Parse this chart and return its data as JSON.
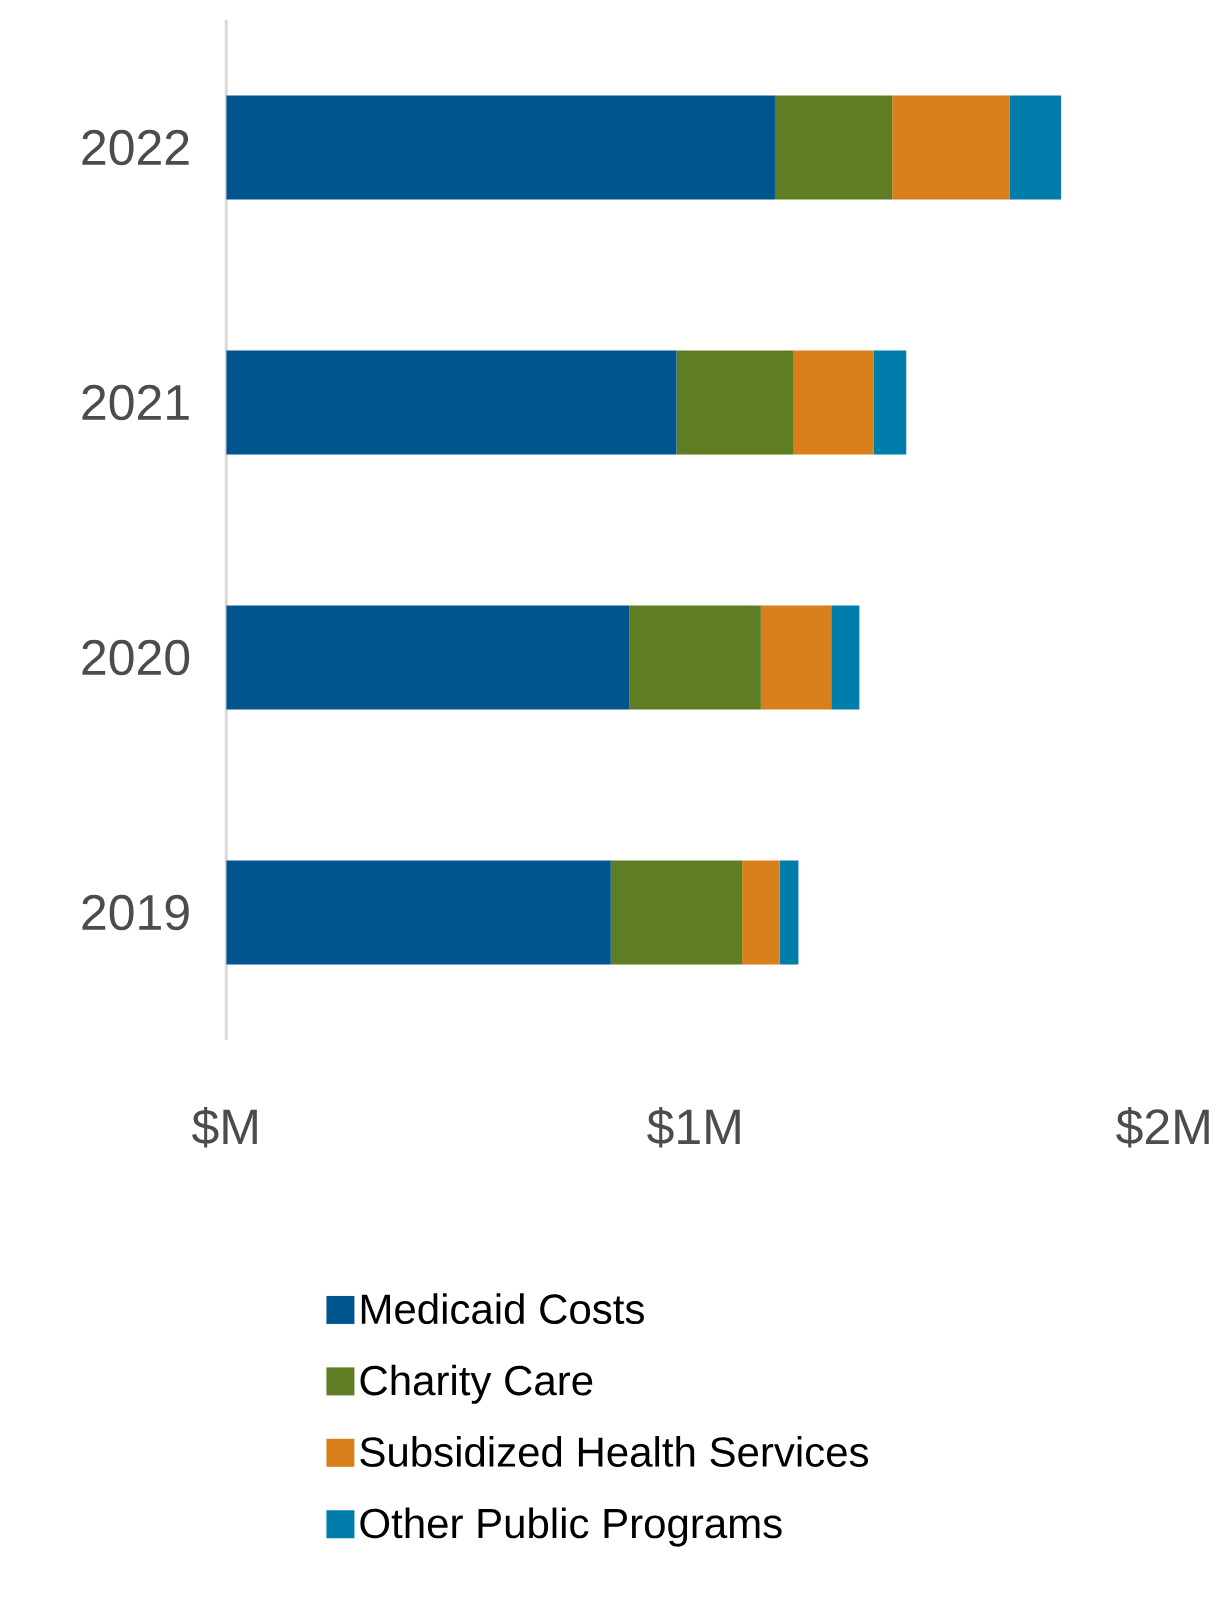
{
  "chart_data": {
    "type": "bar",
    "orientation": "horizontal",
    "stacked": true,
    "categories": [
      "2022",
      "2021",
      "2020",
      "2019"
    ],
    "series": [
      {
        "name": "Medicaid Costs",
        "color": "#00558f",
        "values": [
          1.17,
          0.96,
          0.86,
          0.82
        ]
      },
      {
        "name": "Charity Care",
        "color": "#5f7e24",
        "values": [
          0.25,
          0.25,
          0.28,
          0.28
        ]
      },
      {
        "name": "Subsidized Health Services",
        "color": "#d97f1c",
        "values": [
          0.25,
          0.17,
          0.15,
          0.08
        ]
      },
      {
        "name": "Other Public Programs",
        "color": "#007dab",
        "values": [
          0.11,
          0.07,
          0.06,
          0.04
        ]
      }
    ],
    "xlim": [
      0,
      2
    ],
    "xticks": [
      {
        "value": 0,
        "label": "$M"
      },
      {
        "value": 1,
        "label": "$1M"
      },
      {
        "value": 2,
        "label": "$2M"
      }
    ],
    "legend": "bottom"
  }
}
